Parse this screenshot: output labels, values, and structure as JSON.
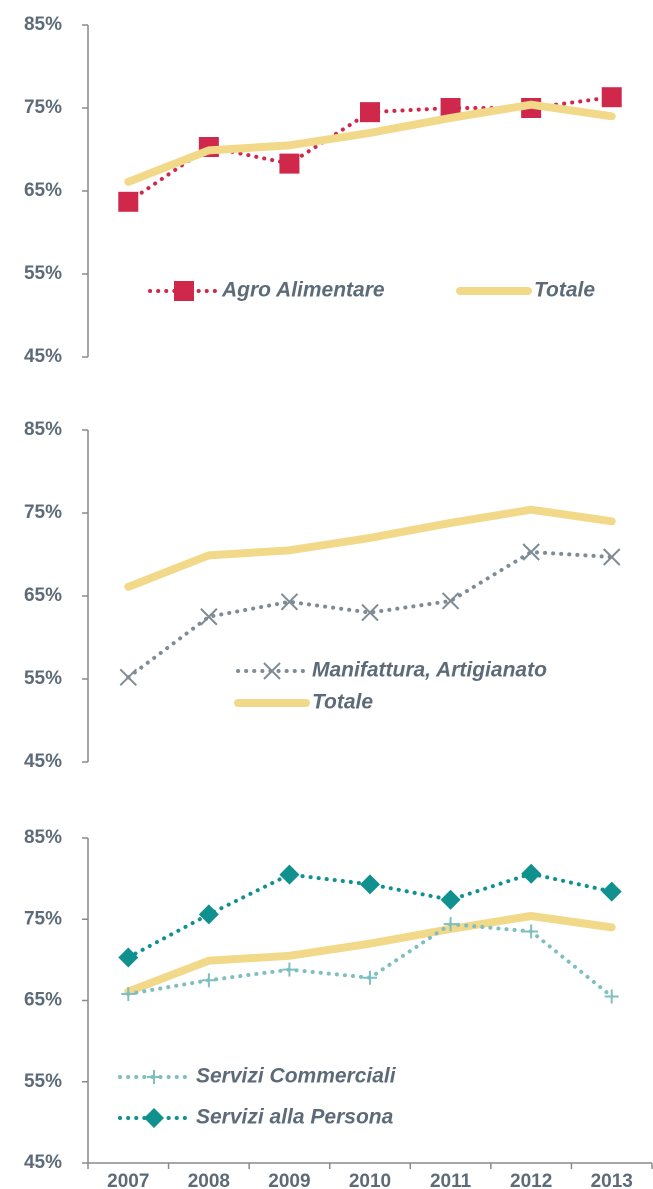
{
  "chart_data": [
    {
      "type": "line",
      "ylim": [
        45,
        85
      ],
      "yticks": [
        {
          "value": 45,
          "label": "45%"
        },
        {
          "value": 55,
          "label": "55%"
        },
        {
          "value": 65,
          "label": "65%"
        },
        {
          "value": 75,
          "label": "75%"
        },
        {
          "value": 85,
          "label": "85%"
        }
      ],
      "series": [
        {
          "name": "Agro Alimentare",
          "color": "#d0284a",
          "style": "dotted",
          "marker": "square",
          "values": [
            63.7,
            70.3,
            68.3,
            74.5,
            75.0,
            75.0,
            76.3
          ]
        },
        {
          "name": "Totale",
          "color": "#f2d98a",
          "style": "solid",
          "marker": "none",
          "values": [
            66.1,
            69.9,
            70.5,
            72.0,
            73.8,
            75.4,
            74.0
          ]
        }
      ]
    },
    {
      "type": "line",
      "ylim": [
        45,
        85
      ],
      "yticks": [
        {
          "value": 45,
          "label": "45%"
        },
        {
          "value": 55,
          "label": "55%"
        },
        {
          "value": 65,
          "label": "65%"
        },
        {
          "value": 75,
          "label": "75%"
        },
        {
          "value": 85,
          "label": "85%"
        }
      ],
      "series": [
        {
          "name": "Manifattura, Artigianato",
          "color": "#7f8c96",
          "style": "dotted",
          "marker": "x",
          "values": [
            55.2,
            62.5,
            64.3,
            63.0,
            64.4,
            70.3,
            69.7
          ]
        },
        {
          "name": "Totale",
          "color": "#f2d98a",
          "style": "solid",
          "marker": "none",
          "values": [
            66.1,
            69.9,
            70.5,
            72.0,
            73.8,
            75.4,
            74.0
          ]
        }
      ]
    },
    {
      "type": "line",
      "ylim": [
        45,
        85
      ],
      "yticks": [
        {
          "value": 45,
          "label": "45%"
        },
        {
          "value": 55,
          "label": "55%"
        },
        {
          "value": 65,
          "label": "65%"
        },
        {
          "value": 75,
          "label": "75%"
        },
        {
          "value": 85,
          "label": "85%"
        }
      ],
      "categories": [
        "2007",
        "2008",
        "2009",
        "2010",
        "2011",
        "2012",
        "2013"
      ],
      "series": [
        {
          "name": "Totale",
          "color": "#f2d98a",
          "style": "solid",
          "marker": "none",
          "values": [
            66.1,
            69.9,
            70.5,
            72.0,
            73.8,
            75.4,
            74.0
          ]
        },
        {
          "name": "Servizi Commerciali",
          "color": "#7fbfbf",
          "style": "dotted",
          "marker": "plus",
          "values": [
            65.8,
            67.5,
            68.8,
            67.8,
            74.4,
            73.5,
            65.5
          ]
        },
        {
          "name": "Servizi alla Persona",
          "color": "#10918f",
          "style": "dotted",
          "marker": "diamond",
          "values": [
            70.3,
            75.6,
            80.5,
            79.3,
            77.4,
            80.6,
            78.4
          ]
        }
      ]
    }
  ]
}
